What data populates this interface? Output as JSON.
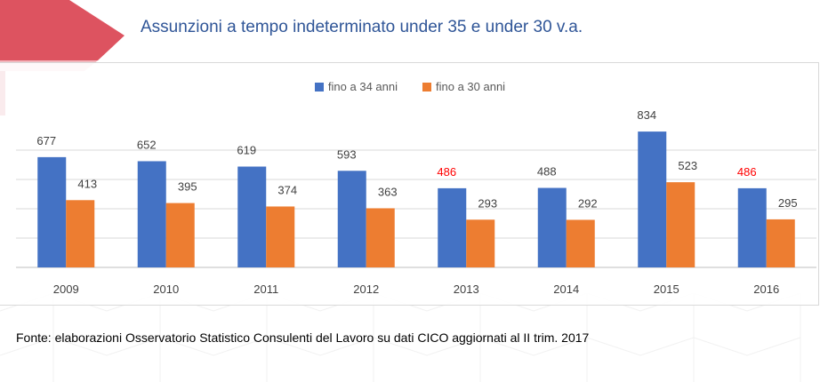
{
  "chart_data": {
    "type": "bar",
    "title": "Assunzioni a tempo indeterminato under 35 e under 30 v.a.",
    "categories": [
      "2009",
      "2010",
      "2011",
      "2012",
      "2013",
      "2014",
      "2015",
      "2016"
    ],
    "series": [
      {
        "name": "fino a 34 anni",
        "color": "#4472c4",
        "values": [
          677,
          652,
          619,
          593,
          486,
          488,
          834,
          486
        ],
        "labels": [
          "677",
          "652",
          "619",
          "593",
          "486",
          "488",
          "834",
          "486"
        ]
      },
      {
        "name": "fino a 30 anni",
        "color": "#ed7d31",
        "values": [
          413,
          395,
          374,
          363,
          293,
          292,
          523,
          295
        ],
        "labels": [
          "413",
          "395",
          "374",
          "363",
          "293",
          "292",
          "523",
          "295"
        ]
      }
    ],
    "highlight_label_color": "#ff0000",
    "highlighted_labels": [
      [
        0,
        4
      ],
      [
        0,
        7
      ]
    ],
    "ylim": [
      0,
      900
    ],
    "gridlines": true,
    "legend_position": "top"
  },
  "source_text": "Fonte: elaborazioni Osservatorio Statistico Consulenti del Lavoro su dati CICO aggiornati al II trim. 2017"
}
